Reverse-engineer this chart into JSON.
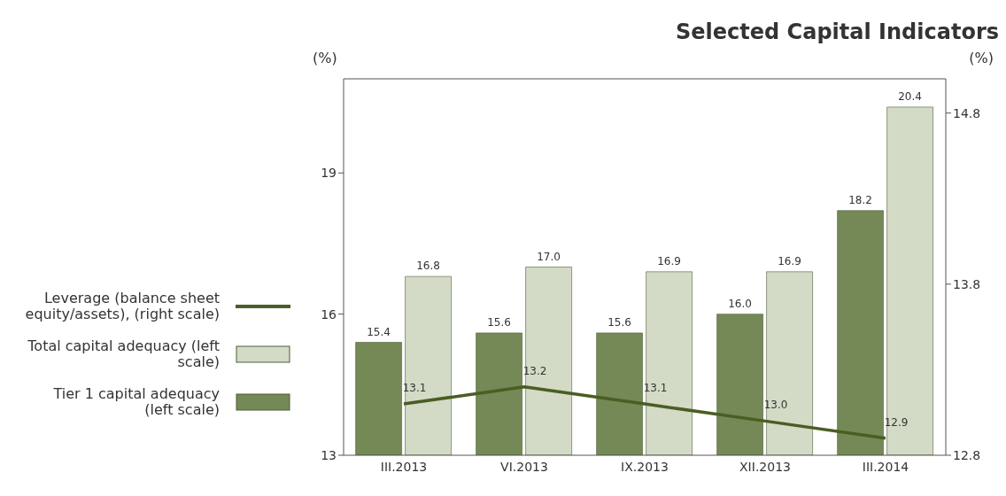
{
  "chart_data": {
    "type": "bar",
    "title": "Selected Capital Indicators",
    "ylabel": "(%)",
    "y2label": "(%)",
    "categories": [
      "III.2013",
      "VI.2013",
      "IX.2013",
      "XII.2013",
      "III.2014"
    ],
    "series": [
      {
        "name": "Tier 1 capital adequacy (left scale)",
        "color": "#748956",
        "values": [
          15.4,
          15.6,
          15.6,
          16.0,
          18.2
        ],
        "value_labels": [
          "15.4",
          "15.6",
          "15.6",
          "16.0",
          "18.2"
        ]
      },
      {
        "name": "Total capital adequacy (left scale)",
        "color": "#d3dbc6",
        "values": [
          16.8,
          17.0,
          16.9,
          16.9,
          20.4
        ],
        "value_labels": [
          "16.8",
          "17.0",
          "16.9",
          "16.9",
          "20.4"
        ]
      },
      {
        "name": "Leverage (balance sheet equity/assets), (right scale)",
        "type": "line",
        "axis": "y2",
        "color": "#4a5e23",
        "values": [
          13.1,
          13.2,
          13.1,
          13.0,
          12.9
        ],
        "value_labels": [
          "13.1",
          "13.2",
          "13.1",
          "13.0",
          "12.9"
        ]
      }
    ],
    "ylim": [
      13,
      21
    ],
    "yticks": [
      13,
      16,
      19
    ],
    "y2lim": [
      12.8,
      15.0
    ],
    "y2ticks": [
      12.8,
      13.8,
      14.8
    ],
    "legend": "left",
    "marker": "none"
  }
}
